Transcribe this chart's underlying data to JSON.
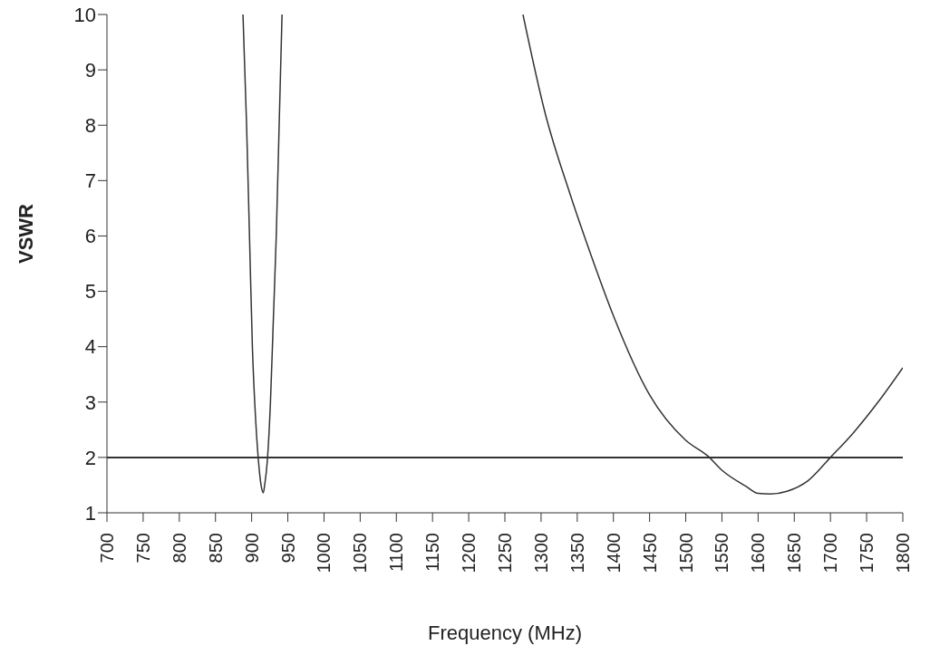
{
  "chart_data": {
    "type": "line",
    "xlabel": "Frequency (MHz)",
    "ylabel": "VSWR",
    "xlim": [
      700,
      1800
    ],
    "xticks": [
      700,
      750,
      800,
      850,
      900,
      950,
      1000,
      1050,
      1100,
      1150,
      1200,
      1250,
      1300,
      1350,
      1400,
      1450,
      1500,
      1550,
      1600,
      1650,
      1700,
      1750,
      1800
    ],
    "ylim": [
      1,
      10
    ],
    "yticks": [
      1,
      2,
      3,
      4,
      5,
      6,
      7,
      8,
      9,
      10
    ],
    "marker": "none",
    "line_style": "solid",
    "series": [
      {
        "color": "#333333",
        "x": [
          888,
          893,
          897,
          901,
          905,
          909,
          913,
          916,
          918,
          922,
          926,
          930,
          934,
          938,
          942
        ],
        "values": [
          10,
          8,
          6,
          4,
          2.8,
          2,
          1.5,
          1.36,
          1.5,
          2,
          3,
          4.5,
          6,
          8,
          10
        ]
      },
      {
        "color": "#333333",
        "x": [
          1275,
          1306,
          1340,
          1370,
          1400,
          1450,
          1500,
          1531,
          1550,
          1583,
          1600,
          1617,
          1640,
          1669,
          1700,
          1732,
          1767,
          1800
        ],
        "values": [
          10,
          8.2,
          6.76,
          5.62,
          4.56,
          3.13,
          2.31,
          2.02,
          1.77,
          1.48,
          1.35,
          1.34,
          1.39,
          1.58,
          2,
          2.45,
          3.02,
          3.62
        ]
      }
    ],
    "ref_lines": [
      {
        "axis": "y",
        "value": 2,
        "color": "#333333",
        "line_style": "solid"
      }
    ]
  }
}
